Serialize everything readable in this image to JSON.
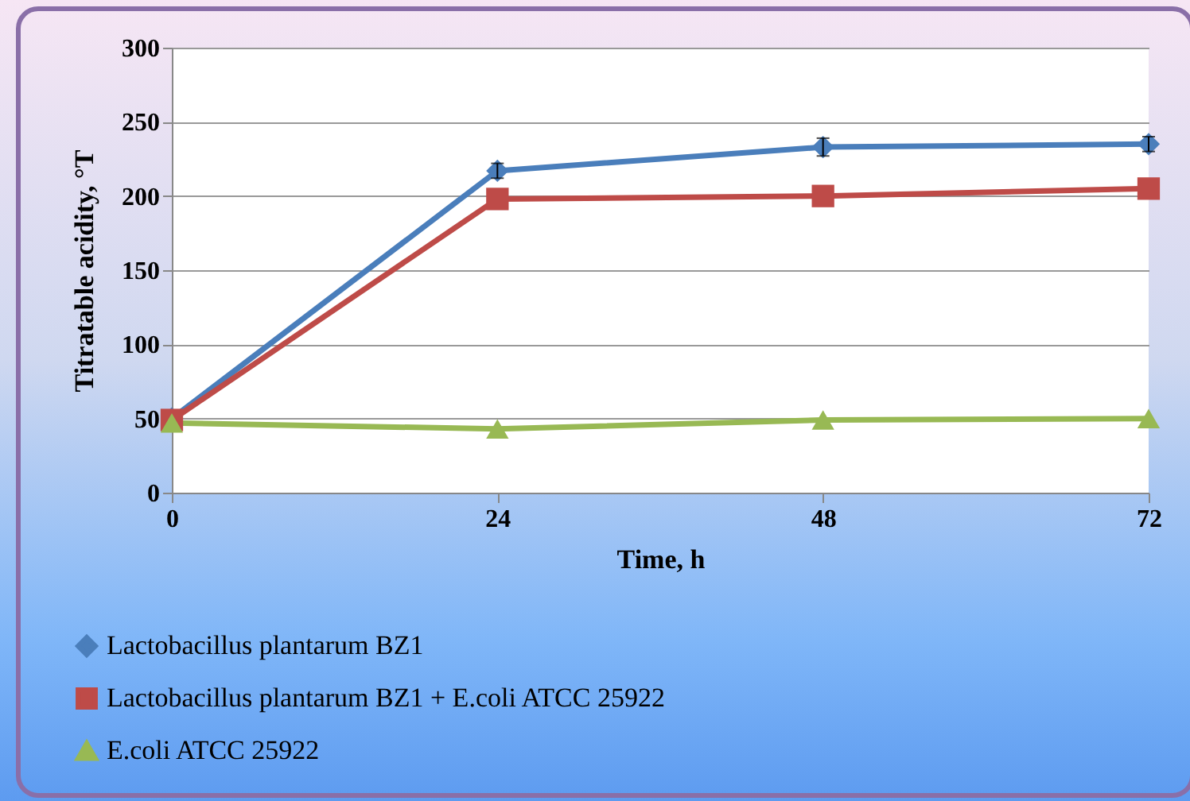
{
  "chart_data": {
    "type": "line",
    "xlabel": "Time, h",
    "ylabel": "Titratable acidity, °T",
    "x": [
      0,
      24,
      48,
      72
    ],
    "xlim": [
      0,
      72
    ],
    "xticks": [
      0,
      24,
      48,
      72
    ],
    "ylim": [
      0,
      300
    ],
    "yticks": [
      0,
      50,
      100,
      150,
      200,
      250,
      300
    ],
    "grid": "y",
    "legend": "bottom left",
    "series": [
      {
        "name": "Lactobacillus plantarum BZ1",
        "color": "#4a7ebb",
        "marker": "diamond",
        "values": [
          50,
          217,
          233,
          235
        ],
        "errors": [
          null,
          5,
          6,
          5
        ]
      },
      {
        "name": "Lactobacillus plantarum BZ1 + E.coli ATCC 25922",
        "color": "#be4b48",
        "marker": "square",
        "values": [
          49,
          198,
          200,
          205
        ]
      },
      {
        "name": "E.coli ATCC 25922",
        "color": "#98b954",
        "marker": "triangle",
        "values": [
          47,
          43,
          49,
          50
        ]
      }
    ]
  }
}
